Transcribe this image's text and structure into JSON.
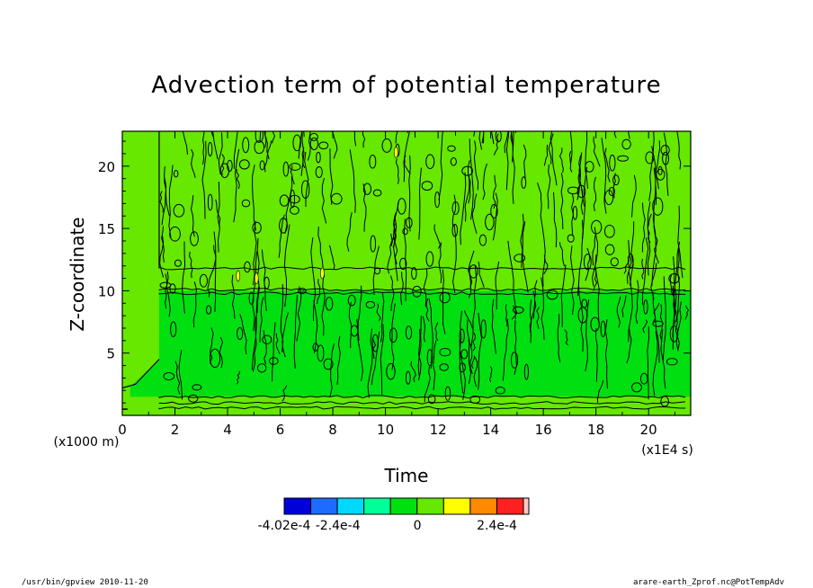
{
  "chart_data": {
    "type": "heatmap",
    "title": "Advection term of potential temperature",
    "xlabel": "Time",
    "ylabel": "Z-coordinate",
    "x_unit": "(x1E4 s)",
    "y_unit": "(x1000 m)",
    "xlim": [
      0,
      21.6
    ],
    "ylim": [
      0,
      22.8
    ],
    "x_ticks": [
      0,
      2,
      4,
      6,
      8,
      10,
      12,
      14,
      16,
      18,
      20
    ],
    "y_ticks": [
      5,
      10,
      15,
      20
    ],
    "x_tick_labels": [
      "0",
      "2",
      "4",
      "6",
      "8",
      "10",
      "12",
      "14",
      "16",
      "18",
      "20"
    ],
    "y_tick_labels": [
      "5",
      "10",
      "15",
      "20"
    ],
    "colorbar": {
      "colors": [
        "#0000d8",
        "#1c6cff",
        "#00d8ff",
        "#00ff98",
        "#00e010",
        "#66e800",
        "#ffff00",
        "#ff8a00",
        "#ff2020",
        "#ffc8c8"
      ],
      "labels": [
        "-4.02e-4",
        "-2.4e-4",
        "0",
        "2.4e-4"
      ],
      "label_values": [
        -0.000402,
        -0.00024,
        0,
        0.00024
      ]
    },
    "regions": [
      {
        "description_value": "near-zero background",
        "color": "#66e800"
      },
      {
        "description_value": "slightly negative layer",
        "color": "#00e010"
      }
    ]
  },
  "footer": {
    "left": "/usr/bin/gpview   2010-11-20",
    "right": "arare-earth_Zprof.nc@PotTempAdv"
  }
}
